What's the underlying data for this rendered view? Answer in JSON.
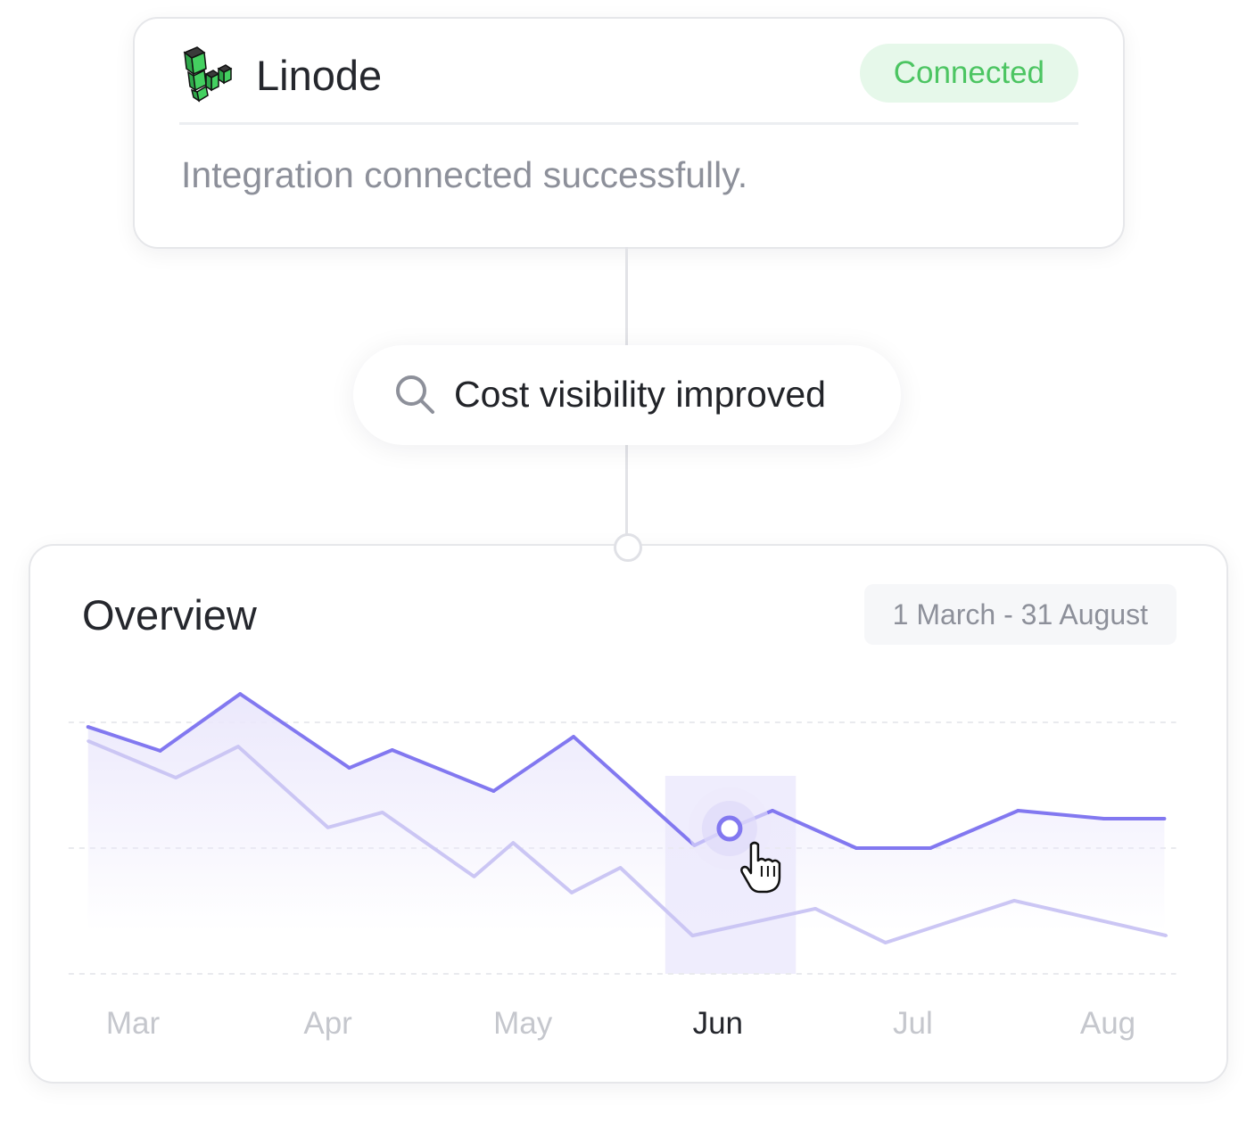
{
  "integration": {
    "name": "Linode",
    "status": "Connected",
    "message": "Integration connected successfully.",
    "logo_icon": "linode-cubes-logo"
  },
  "insight": {
    "icon": "search-icon",
    "text": "Cost visibility improved"
  },
  "overview": {
    "title": "Overview",
    "date_range": "1 March - 31 August",
    "colors": {
      "primary_line": "#8278f0",
      "secondary_line": "#cbc6f4",
      "area": "#ebe8fc",
      "highlight": "#efedfd"
    }
  },
  "chart_data": {
    "type": "area",
    "title": "",
    "xlabel": "",
    "ylabel": "",
    "categories": [
      "Mar",
      "Apr",
      "May",
      "Jun",
      "Jul",
      "Aug"
    ],
    "active_category": "Jun",
    "ylim": [
      0,
      100
    ],
    "grid": true,
    "series": [
      {
        "x": [
          -0.23,
          0.14,
          0.55,
          1.11,
          1.33,
          1.85,
          2.26,
          2.88,
          3.06,
          3.28,
          3.71,
          4.09,
          4.54,
          4.98,
          5.29
        ],
        "values": [
          98.2,
          88.7,
          111.3,
          81.9,
          89.0,
          72.7,
          94.3,
          51.1,
          57.8,
          64.9,
          50.0,
          50.0,
          64.9,
          61.7,
          61.7
        ]
      },
      {
        "x": [
          -0.23,
          0.22,
          0.54,
          1.0,
          1.28,
          1.75,
          1.95,
          2.25,
          2.5,
          2.87,
          3.5,
          3.86,
          4.52,
          5.3
        ],
        "values": [
          92.6,
          78.0,
          90.4,
          58.2,
          64.2,
          38.7,
          52.1,
          32.3,
          42.2,
          15.2,
          25.9,
          12.4,
          29.1,
          15.2
        ]
      }
    ],
    "highlight_point_index": 8,
    "highlight_band": [
      2.73,
      3.4
    ]
  }
}
